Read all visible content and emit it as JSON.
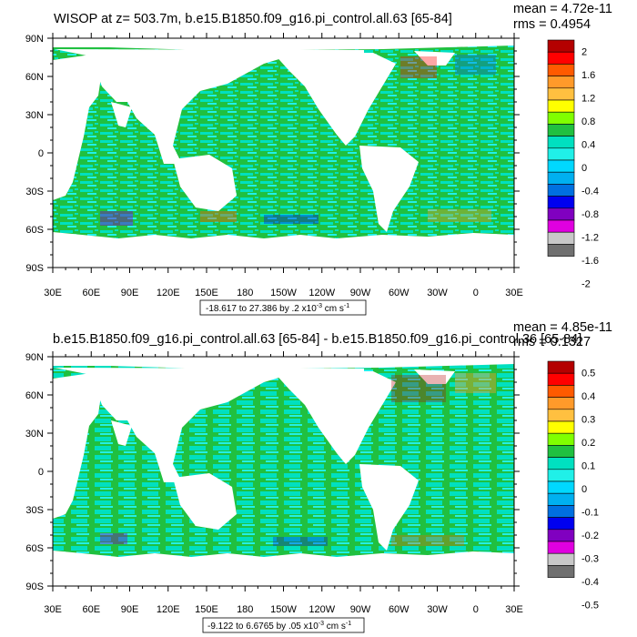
{
  "chart_data": [
    {
      "type": "heatmap",
      "title": "WISOP at z= 503.7m, b.e15.B1850.f09_g16.pi_control.all.63 [65-84]",
      "mean_label": "mean = 4.72e-11",
      "rms_label": "rms = 0.4954",
      "range_prefix": "-18.617 to 27.386 by .2 x10",
      "range_exp": "-3",
      "range_units": " cm s",
      "range_units_exp": "-1",
      "ylabels": [
        "90N",
        "60N",
        "30N",
        "0",
        "30S",
        "60S",
        "90S"
      ],
      "xlabels": [
        "30E",
        "60E",
        "90E",
        "120E",
        "150E",
        "180",
        "150W",
        "120W",
        "90W",
        "60W",
        "30W",
        "0",
        "30E"
      ],
      "ylim": [
        -90,
        90
      ],
      "xlim": [
        30,
        390
      ],
      "colorbar_labels": [
        "2",
        "1.6",
        "1.2",
        "0.8",
        "0.4",
        "0",
        "-0.4",
        "-0.8",
        "-1.2",
        "-1.6",
        "-2"
      ]
    },
    {
      "type": "heatmap",
      "title": "b.e15.B1850.f09_g16.pi_control.all.63 [65-84] - b.e15.B1850.f09_g16.pi_control.36 [65-84]",
      "mean_label": "mean = 4.85e-11",
      "rms_label": "rms = 0.1327",
      "range_prefix": "-9.122 to 6.6765 by .05 x10",
      "range_exp": "-3",
      "range_units": " cm s",
      "range_units_exp": "-1",
      "ylabels": [
        "90N",
        "60N",
        "30N",
        "0",
        "30S",
        "60S",
        "90S"
      ],
      "xlabels": [
        "30E",
        "60E",
        "90E",
        "120E",
        "150E",
        "180",
        "150W",
        "120W",
        "90W",
        "60W",
        "30W",
        "0",
        "30E"
      ],
      "ylim": [
        -90,
        90
      ],
      "xlim": [
        30,
        390
      ],
      "colorbar_labels": [
        "0.5",
        "0.4",
        "0.3",
        "0.2",
        "0.1",
        "0",
        "-0.1",
        "-0.2",
        "-0.3",
        "-0.4",
        "-0.5"
      ]
    }
  ],
  "colorbar_colors": [
    "#b40000",
    "#ff0000",
    "#ff5a00",
    "#ff9a2a",
    "#ffc040",
    "#ffff00",
    "#80ff00",
    "#20c040",
    "#00e0c0",
    "#20f0e8",
    "#00d8ff",
    "#00b0f0",
    "#0070e0",
    "#0000f0",
    "#8000c0",
    "#e000e0",
    "#c8c8c8",
    "#707070"
  ],
  "ocean_colors": {
    "base": "#20c040",
    "light": "#00e0c0",
    "pale": "#20f0e8"
  }
}
